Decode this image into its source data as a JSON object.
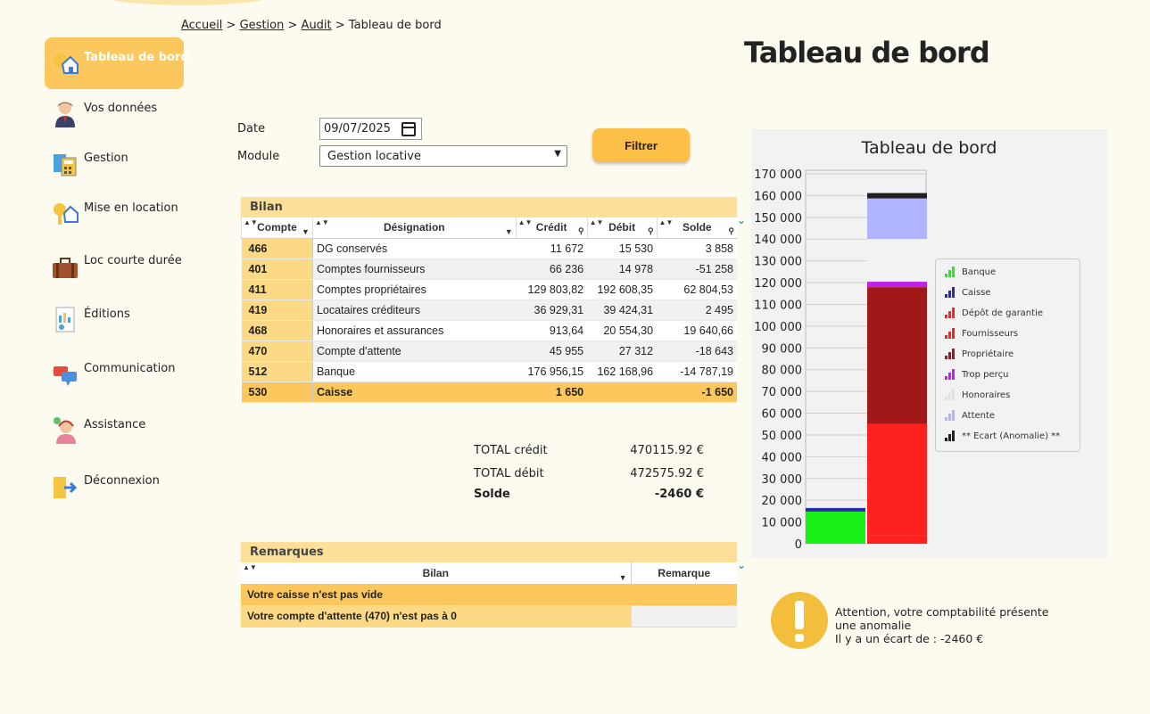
{
  "breadcrumb": {
    "items": [
      "Accueil",
      "Gestion",
      "Audit"
    ],
    "current": "Tableau de bord",
    "sep": ">"
  },
  "page_title": "Tableau de bord",
  "sidebar": {
    "items": [
      {
        "label": "Tableau de bord",
        "icon": "home-key-icon",
        "active": true
      },
      {
        "label": "Vos données",
        "icon": "user-icon"
      },
      {
        "label": "Gestion",
        "icon": "calculator-icon"
      },
      {
        "label": "Mise en location",
        "icon": "house-key-icon"
      },
      {
        "label": "Loc courte durée",
        "icon": "suitcase-icon"
      },
      {
        "label": "Éditions",
        "icon": "report-icon"
      },
      {
        "label": "Communication",
        "icon": "chat-bubbles-icon"
      },
      {
        "label": "Assistance",
        "icon": "support-agent-icon"
      },
      {
        "label": "Déconnexion",
        "icon": "logout-icon"
      }
    ]
  },
  "filter": {
    "date_label": "Date",
    "date_value": "09/07/2025",
    "module_label": "Module",
    "module_value": "Gestion locative",
    "button": "Filtrer"
  },
  "bilan": {
    "title": "Bilan",
    "columns": [
      "Compte",
      "Désignation",
      "Crédit",
      "Débit",
      "Solde"
    ],
    "rows": [
      [
        "466",
        "DG conservés",
        "11 672",
        "15 530",
        "3 858"
      ],
      [
        "401",
        "Comptes fournisseurs",
        "66 236",
        "14 978",
        "-51 258"
      ],
      [
        "411",
        "Comptes propriétaires",
        "129 803,82",
        "192 608,35",
        "62 804,53"
      ],
      [
        "419",
        "Locataires créditeurs",
        "36 929,31",
        "39 424,31",
        "2 495"
      ],
      [
        "468",
        "Honoraires et assurances",
        "913,64",
        "20 554,30",
        "19 640,66"
      ],
      [
        "470",
        "Compte d'attente",
        "45 955",
        "27 312",
        "-18 643"
      ],
      [
        "512",
        "Banque",
        "176 956,15",
        "162 168,96",
        "-14 787,19"
      ]
    ],
    "total_row": [
      "530",
      "Caisse",
      "1 650",
      "",
      "-1 650"
    ]
  },
  "totals": {
    "credit_label": "TOTAL crédit",
    "credit_value": "470115.92 €",
    "debit_label": "TOTAL débit",
    "debit_value": "472575.92 €",
    "solde_label": "Solde",
    "solde_value": "-2460 €"
  },
  "remarques": {
    "title": "Remarques",
    "columns": [
      "Bilan",
      "Remarque"
    ],
    "rows": [
      [
        "Votre caisse n'est pas vide",
        ""
      ],
      [
        "Votre compte d'attente (470) n'est pas à 0",
        ""
      ]
    ]
  },
  "chart_data": {
    "type": "bar",
    "stacked": true,
    "title": "Tableau de bord",
    "ylim": [
      0,
      170000
    ],
    "yticks": [
      "0",
      "10 000",
      "20 000",
      "30 000",
      "40 000",
      "50 000",
      "60 000",
      "70 000",
      "80 000",
      "90 000",
      "100 000",
      "110 000",
      "120 000",
      "130 000",
      "140 000",
      "150 000",
      "160 000",
      "170 000"
    ],
    "legend_position": "right",
    "grid": true,
    "stacks": [
      {
        "segments": [
          {
            "series": "Banque",
            "value": 14787,
            "color": "#18f018"
          },
          {
            "series": "Caisse",
            "value": 1650,
            "color": "#2a2aa8"
          }
        ]
      },
      {
        "segments": [
          {
            "series": "Dépôt de garantie",
            "value": 3858,
            "color": "#ff2020"
          },
          {
            "series": "Fournisseurs",
            "value": 51258,
            "color": "#ff2020"
          },
          {
            "series": "Propriétaire",
            "value": 62805,
            "color": "#a01818"
          },
          {
            "series": "Trop perçu",
            "value": 2495,
            "color": "#c020e8"
          },
          {
            "series": "Honoraires",
            "value": 19641,
            "color": "#f2f2f2"
          },
          {
            "series": "Attente",
            "value": 18643,
            "color": "#b0b4ff"
          },
          {
            "series": "** Ecart (Anomalie) **",
            "value": 2460,
            "color": "#202020"
          }
        ]
      }
    ],
    "legend": [
      {
        "name": "Banque",
        "color": "#18f018"
      },
      {
        "name": "Caisse",
        "color": "#2a2aa8"
      },
      {
        "name": "Dépôt de garantie",
        "color": "#ff2020"
      },
      {
        "name": "Fournisseurs",
        "color": "#ff2020"
      },
      {
        "name": "Propriétaire",
        "color": "#a01818"
      },
      {
        "name": "Trop perçu",
        "color": "#c020e8"
      },
      {
        "name": "Honoraires",
        "color": "#e0e0e0"
      },
      {
        "name": "Attente",
        "color": "#b0b4ff"
      },
      {
        "name": "** Ecart (Anomalie) **",
        "color": "#202020"
      }
    ]
  },
  "alert": {
    "icon": "exclamation-icon",
    "line1": "Attention, votre comptabilité présente",
    "line2": "une anomalie",
    "line3": "Il y a un écart de : -2460 €"
  }
}
